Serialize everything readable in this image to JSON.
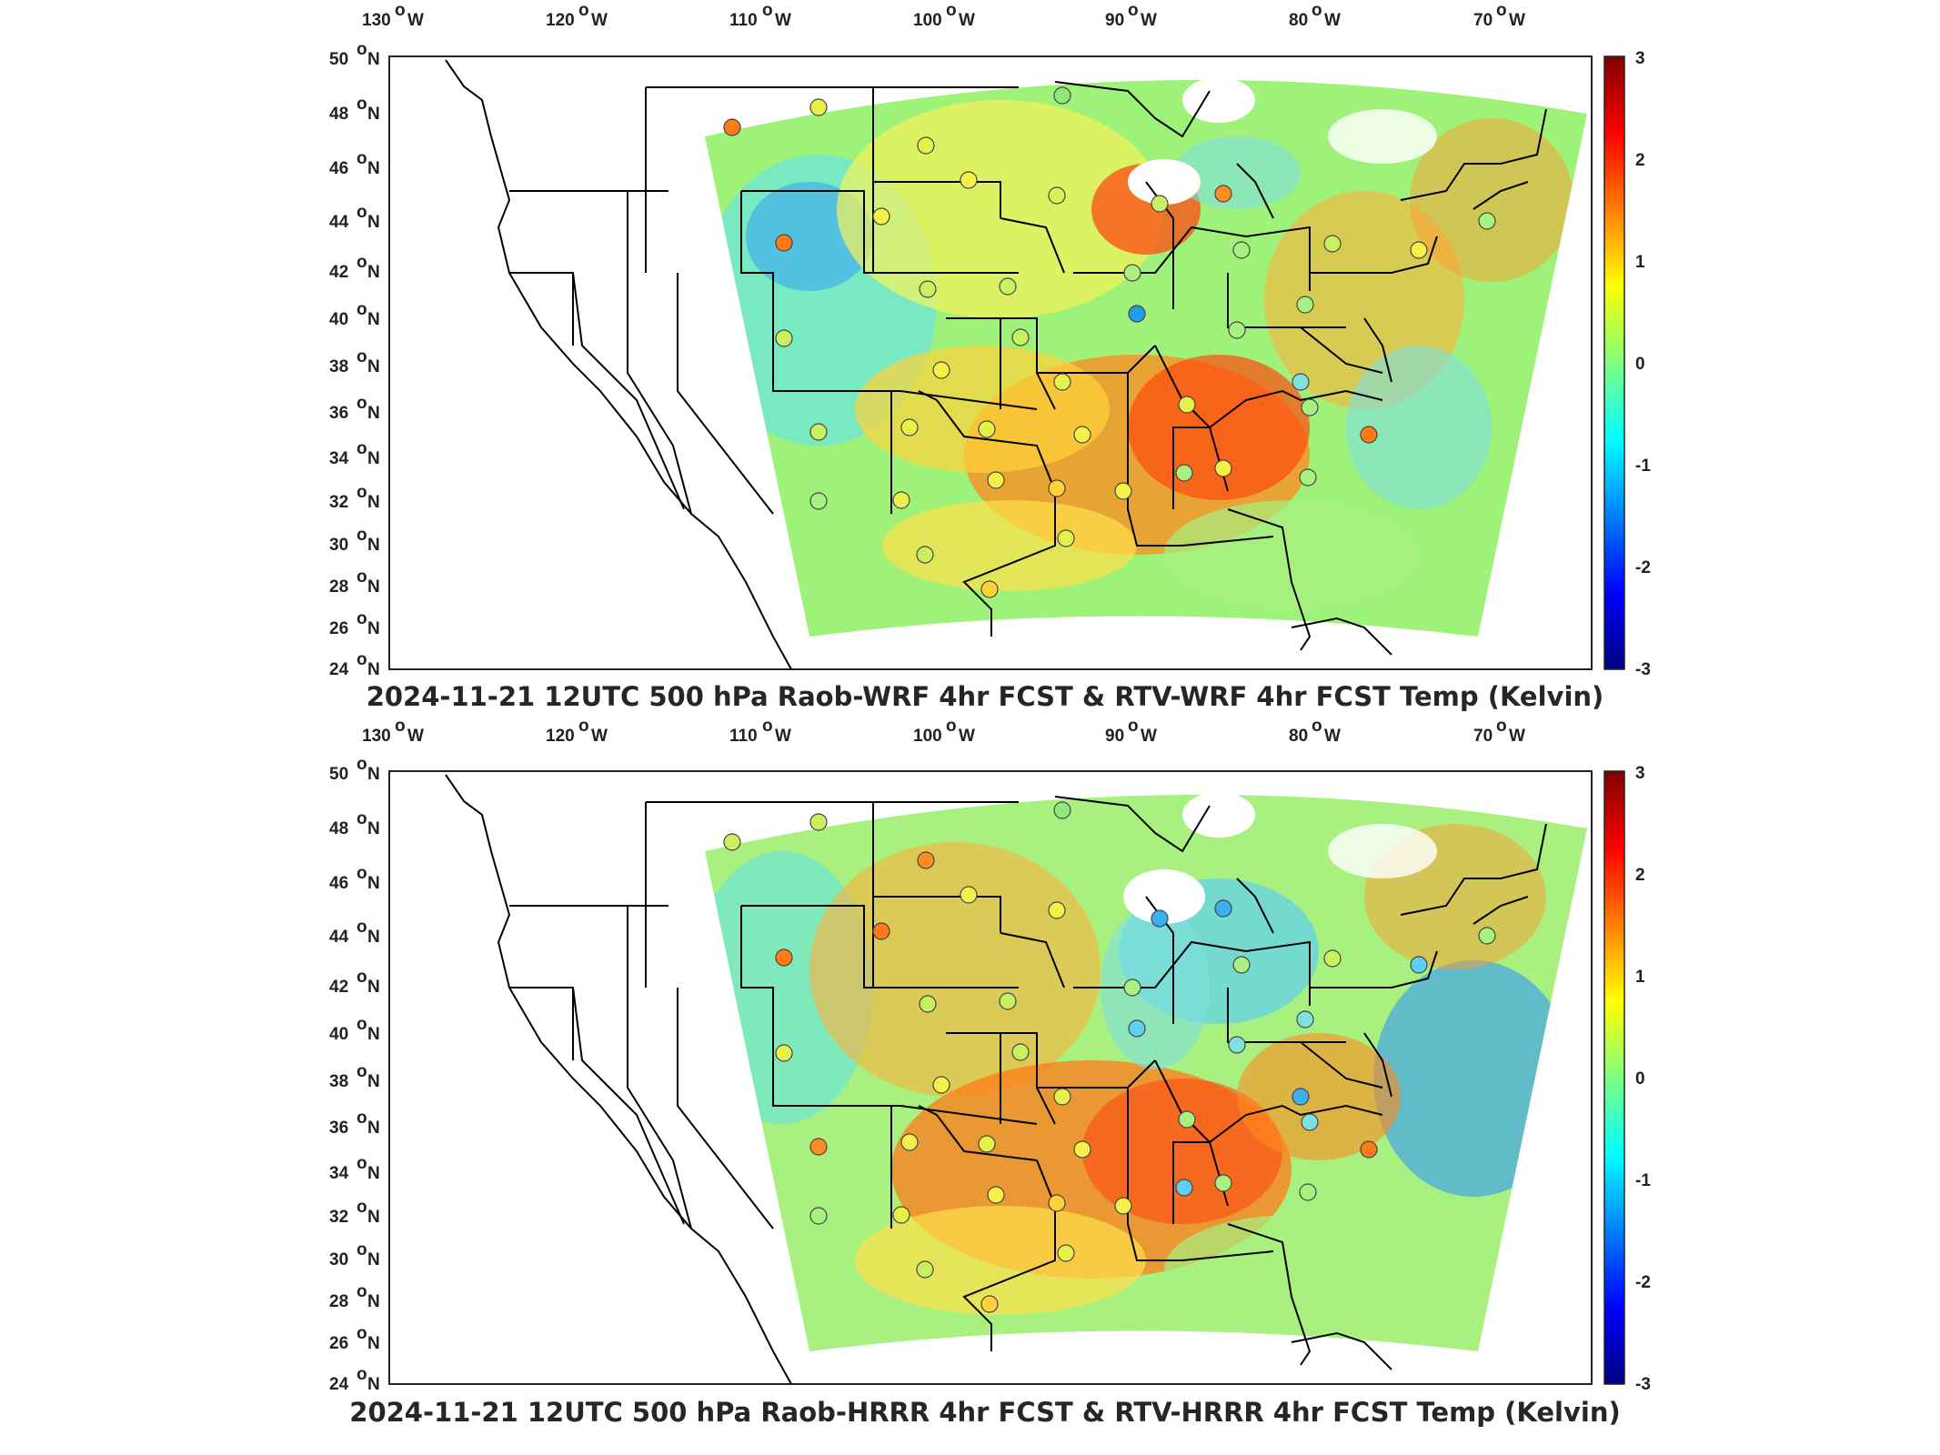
{
  "panels": [
    {
      "id": "top",
      "title": "2024-11-21 12UTC 500 hPa Raob-WRF 4hr FCST & RTV-WRF 4hr FCST Temp (Kelvin)",
      "lon_ticks": [
        "130",
        "120",
        "110",
        "100",
        "90",
        "80",
        "70"
      ],
      "lon_suffix": "W",
      "lat_ticks": [
        "50",
        "48",
        "46",
        "44",
        "42",
        "40",
        "38",
        "36",
        "34",
        "32",
        "30",
        "28",
        "26",
        "24"
      ],
      "lat_suffix": "N",
      "colorbar_ticks": [
        "3",
        "2",
        "1",
        "0",
        "-1",
        "-2",
        "-3"
      ]
    },
    {
      "id": "bottom",
      "title": "2024-11-21 12UTC 500 hPa Raob-HRRR 4hr FCST & RTV-HRRR 4hr FCST Temp (Kelvin)",
      "lon_ticks": [
        "130",
        "120",
        "110",
        "100",
        "90",
        "80",
        "70"
      ],
      "lon_suffix": "W",
      "lat_ticks": [
        "50",
        "48",
        "46",
        "44",
        "42",
        "40",
        "38",
        "36",
        "34",
        "32",
        "30",
        "28",
        "26",
        "24"
      ],
      "lat_suffix": "N",
      "colorbar_ticks": [
        "3",
        "2",
        "1",
        "0",
        "-1",
        "-2",
        "-3"
      ]
    }
  ],
  "colorbar": {
    "min": -3,
    "max": 3,
    "colormap": "jet",
    "colors": [
      "#00007f",
      "#0000ff",
      "#007fff",
      "#00ffff",
      "#7fff7f",
      "#ffff00",
      "#ff7f00",
      "#ff0000",
      "#7f0000"
    ]
  },
  "map_colors": {
    "border": "#000000",
    "frame": "#222222",
    "missing": "#ffffff"
  }
}
